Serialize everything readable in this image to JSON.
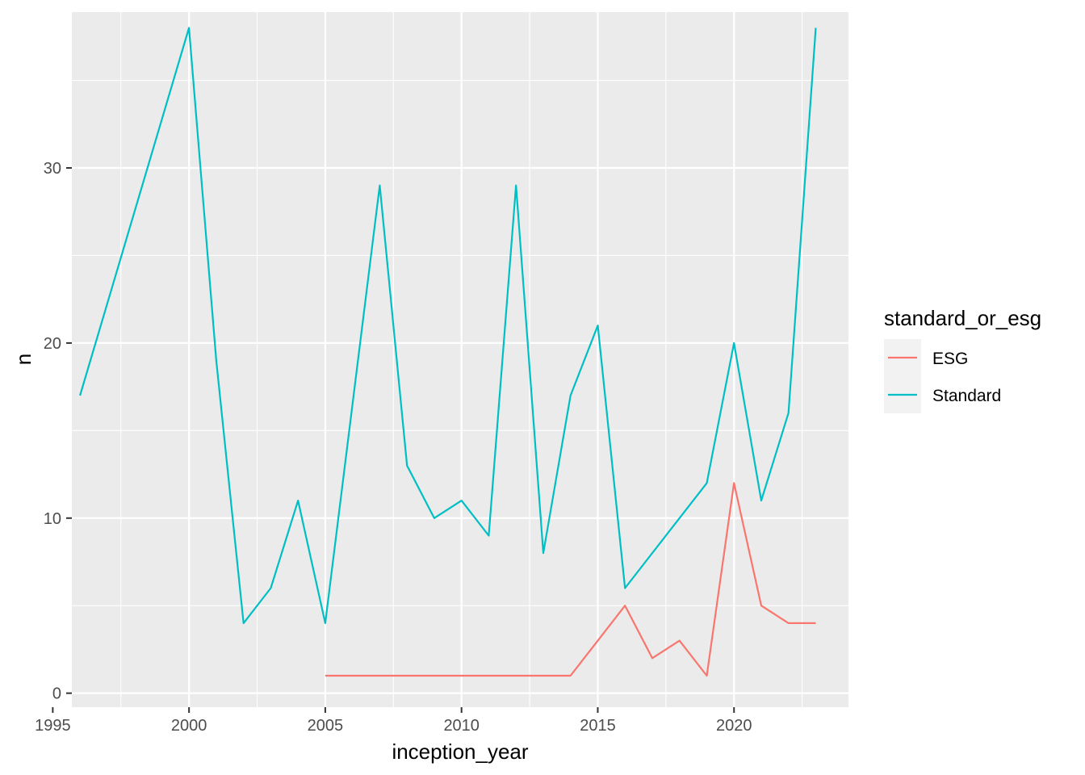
{
  "chart_data": {
    "type": "line",
    "xlabel": "inception_year",
    "ylabel": "n",
    "xlim": [
      1995.7,
      2024.2
    ],
    "ylim": [
      -0.8,
      38.9
    ],
    "x_ticks": [
      1995,
      2000,
      2005,
      2010,
      2015,
      2020
    ],
    "y_ticks": [
      0,
      10,
      20,
      30
    ],
    "grid": true,
    "legend": {
      "title": "standard_or_esg",
      "placement": "right"
    },
    "series": [
      {
        "name": "ESG",
        "color": "#F8766D",
        "x": [
          2005,
          2006,
          2007,
          2008,
          2009,
          2010,
          2011,
          2012,
          2013,
          2014,
          2015,
          2016,
          2017,
          2018,
          2019,
          2020,
          2021,
          2022,
          2023
        ],
        "y": [
          1,
          1,
          1,
          1,
          1,
          1,
          1,
          1,
          1,
          1,
          3,
          5,
          2,
          3,
          1,
          12,
          5,
          4,
          4
        ]
      },
      {
        "name": "Standard",
        "color": "#00BFC4",
        "x": [
          1996,
          2000,
          2001,
          2002,
          2003,
          2004,
          2005,
          2007,
          2008,
          2009,
          2010,
          2011,
          2012,
          2013,
          2014,
          2015,
          2016,
          2019,
          2020,
          2021,
          2022,
          2023
        ],
        "y": [
          17,
          38,
          19,
          4,
          6,
          11,
          4,
          29,
          13,
          10,
          11,
          9,
          29,
          8,
          17,
          21,
          6,
          12,
          20,
          11,
          16,
          38
        ]
      }
    ]
  }
}
